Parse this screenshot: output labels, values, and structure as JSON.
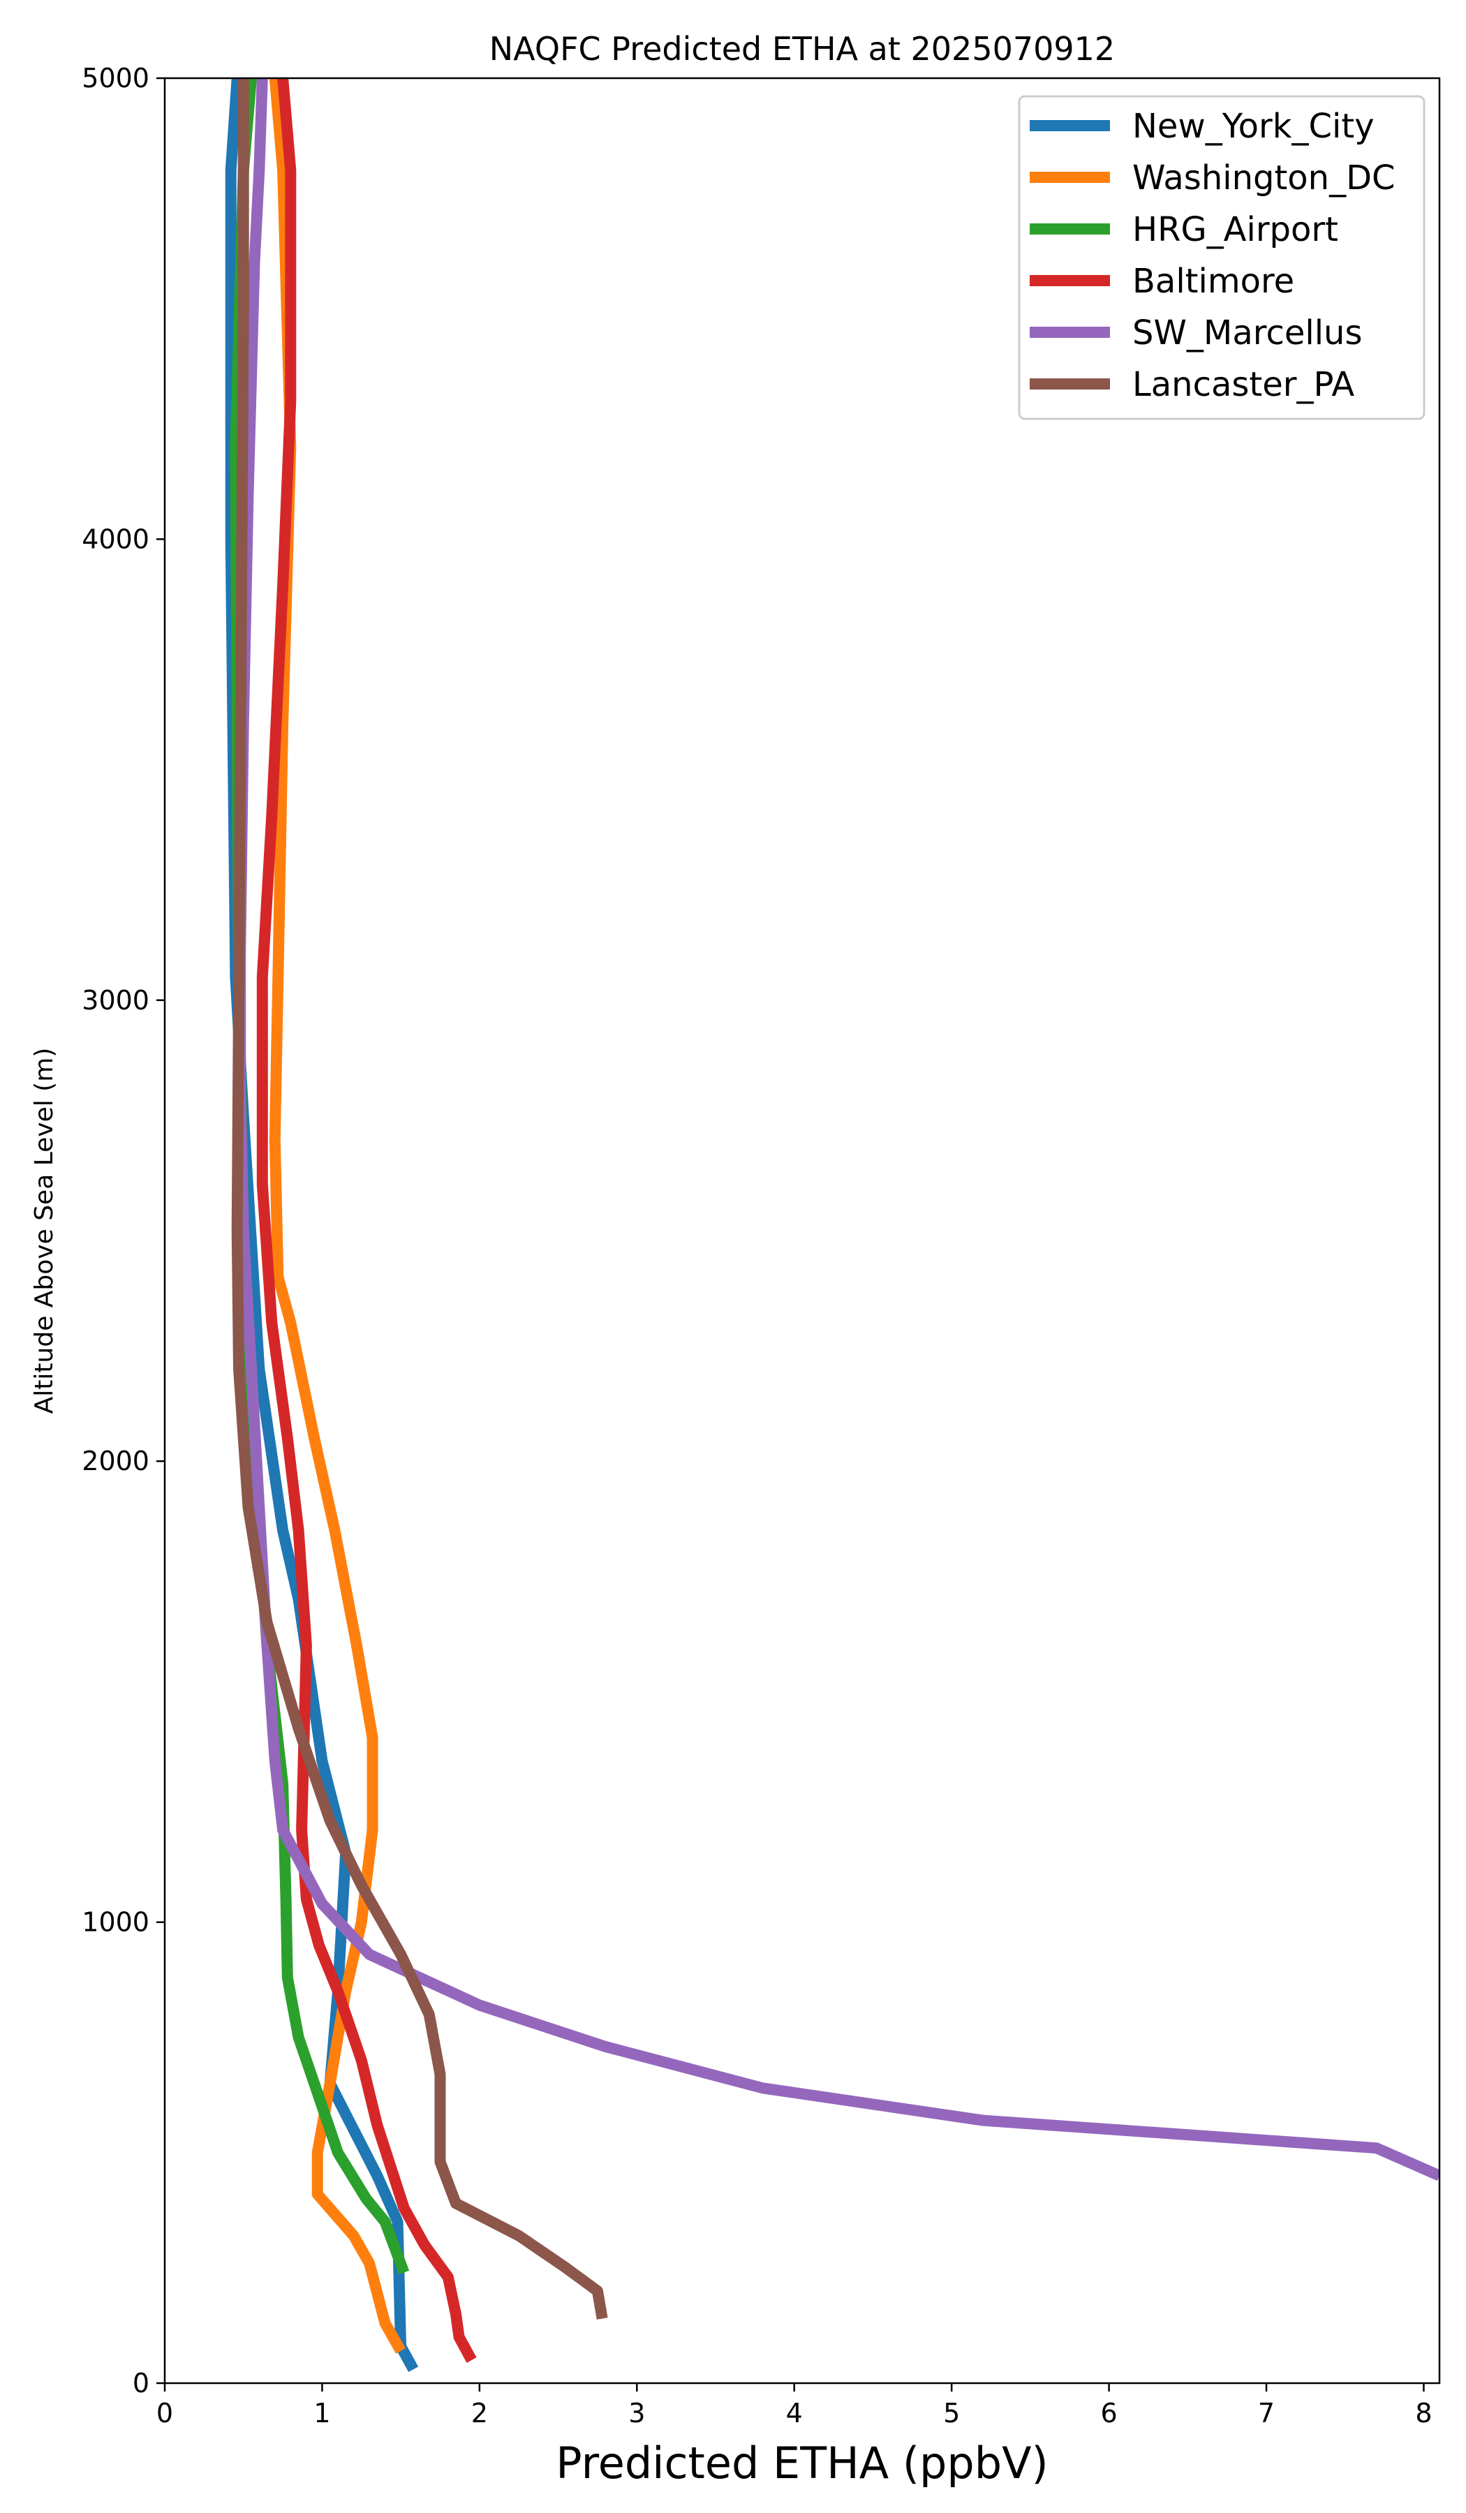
{
  "chart_data": {
    "type": "line",
    "title": "NAQFC Predicted ETHA at 2025070912",
    "xlabel": "Predicted ETHA (ppbV)",
    "ylabel": "Altitude Above Sea Level (m)",
    "xlim": [
      0,
      8.1
    ],
    "ylim": [
      0,
      5000
    ],
    "xticks": [
      {
        "value": 0,
        "label": "0"
      },
      {
        "value": 1,
        "label": "1"
      },
      {
        "value": 2,
        "label": "2"
      },
      {
        "value": 3,
        "label": "3"
      },
      {
        "value": 4,
        "label": "4"
      },
      {
        "value": 5,
        "label": "5"
      },
      {
        "value": 6,
        "label": "6"
      },
      {
        "value": 7,
        "label": "7"
      },
      {
        "value": 8,
        "label": "8"
      }
    ],
    "yticks": [
      {
        "value": 0,
        "label": "0"
      },
      {
        "value": 1000,
        "label": "1000"
      },
      {
        "value": 2000,
        "label": "2000"
      },
      {
        "value": 3000,
        "label": "3000"
      },
      {
        "value": 4000,
        "label": "4000"
      },
      {
        "value": 5000,
        "label": "5000"
      }
    ],
    "grid": false,
    "legend_position": "top-right",
    "series": [
      {
        "name": "New_York_City",
        "color": "#1f77b4",
        "points": [
          [
            1.58,
            30
          ],
          [
            1.5,
            80
          ],
          [
            1.48,
            350
          ],
          [
            1.35,
            450
          ],
          [
            1.05,
            650
          ],
          [
            1.1,
            850
          ],
          [
            1.15,
            1150
          ],
          [
            1.0,
            1350
          ],
          [
            0.85,
            1700
          ],
          [
            0.75,
            1850
          ],
          [
            0.6,
            2200
          ],
          [
            0.5,
            2750
          ],
          [
            0.45,
            3050
          ],
          [
            0.42,
            4000
          ],
          [
            0.42,
            4800
          ],
          [
            0.46,
            5000
          ]
        ]
      },
      {
        "name": "Washington_DC",
        "color": "#ff7f0e",
        "points": [
          [
            1.5,
            70
          ],
          [
            1.4,
            130
          ],
          [
            1.3,
            260
          ],
          [
            1.2,
            320
          ],
          [
            0.97,
            410
          ],
          [
            0.97,
            500
          ],
          [
            1.05,
            650
          ],
          [
            1.15,
            850
          ],
          [
            1.25,
            1000
          ],
          [
            1.32,
            1200
          ],
          [
            1.32,
            1400
          ],
          [
            1.22,
            1600
          ],
          [
            1.08,
            1850
          ],
          [
            0.95,
            2050
          ],
          [
            0.8,
            2300
          ],
          [
            0.72,
            2400
          ],
          [
            0.7,
            2700
          ],
          [
            0.72,
            3050
          ],
          [
            0.75,
            3600
          ],
          [
            0.8,
            4200
          ],
          [
            0.75,
            4800
          ],
          [
            0.7,
            5000
          ]
        ]
      },
      {
        "name": "HRG_Airport",
        "color": "#2ca02c",
        "points": [
          [
            1.52,
            240
          ],
          [
            1.4,
            350
          ],
          [
            1.28,
            400
          ],
          [
            1.1,
            500
          ],
          [
            0.95,
            650
          ],
          [
            0.85,
            750
          ],
          [
            0.78,
            880
          ],
          [
            0.77,
            1050
          ],
          [
            0.75,
            1300
          ],
          [
            0.65,
            1600
          ],
          [
            0.55,
            2100
          ],
          [
            0.5,
            2500
          ],
          [
            0.47,
            3050
          ],
          [
            0.45,
            4200
          ],
          [
            0.5,
            4800
          ],
          [
            0.55,
            5000
          ]
        ]
      },
      {
        "name": "Baltimore",
        "color": "#d62728",
        "points": [
          [
            1.95,
            50
          ],
          [
            1.87,
            100
          ],
          [
            1.85,
            150
          ],
          [
            1.8,
            230
          ],
          [
            1.65,
            300
          ],
          [
            1.52,
            380
          ],
          [
            1.35,
            560
          ],
          [
            1.25,
            700
          ],
          [
            1.1,
            850
          ],
          [
            0.98,
            950
          ],
          [
            0.9,
            1050
          ],
          [
            0.87,
            1200
          ],
          [
            0.9,
            1600
          ],
          [
            0.85,
            1850
          ],
          [
            0.78,
            2050
          ],
          [
            0.68,
            2300
          ],
          [
            0.62,
            2600
          ],
          [
            0.62,
            3050
          ],
          [
            0.68,
            3400
          ],
          [
            0.75,
            3900
          ],
          [
            0.8,
            4300
          ],
          [
            0.8,
            4800
          ],
          [
            0.75,
            5000
          ]
        ]
      },
      {
        "name": "SW_Marcellus",
        "color": "#9467bd",
        "points": [
          [
            8.1,
            450
          ],
          [
            7.7,
            510
          ],
          [
            5.2,
            570
          ],
          [
            3.8,
            640
          ],
          [
            2.8,
            730
          ],
          [
            2.0,
            820
          ],
          [
            1.3,
            930
          ],
          [
            1.0,
            1040
          ],
          [
            0.75,
            1200
          ],
          [
            0.7,
            1350
          ],
          [
            0.65,
            1600
          ],
          [
            0.6,
            1900
          ],
          [
            0.55,
            2200
          ],
          [
            0.5,
            2500
          ],
          [
            0.48,
            2800
          ],
          [
            0.48,
            3100
          ],
          [
            0.5,
            3600
          ],
          [
            0.53,
            4100
          ],
          [
            0.57,
            4600
          ],
          [
            0.6,
            4800
          ],
          [
            0.62,
            5000
          ]
        ]
      },
      {
        "name": "Lancaster_PA",
        "color": "#8c564b",
        "points": [
          [
            2.78,
            140
          ],
          [
            2.75,
            200
          ],
          [
            2.55,
            250
          ],
          [
            2.25,
            320
          ],
          [
            1.85,
            390
          ],
          [
            1.75,
            480
          ],
          [
            1.75,
            580
          ],
          [
            1.75,
            670
          ],
          [
            1.68,
            800
          ],
          [
            1.5,
            930
          ],
          [
            1.25,
            1080
          ],
          [
            1.05,
            1220
          ],
          [
            0.85,
            1420
          ],
          [
            0.65,
            1650
          ],
          [
            0.53,
            1900
          ],
          [
            0.47,
            2200
          ],
          [
            0.46,
            2500
          ],
          [
            0.47,
            3000
          ],
          [
            0.48,
            3500
          ],
          [
            0.49,
            4000
          ],
          [
            0.5,
            4500
          ],
          [
            0.5,
            5000
          ]
        ]
      }
    ]
  }
}
